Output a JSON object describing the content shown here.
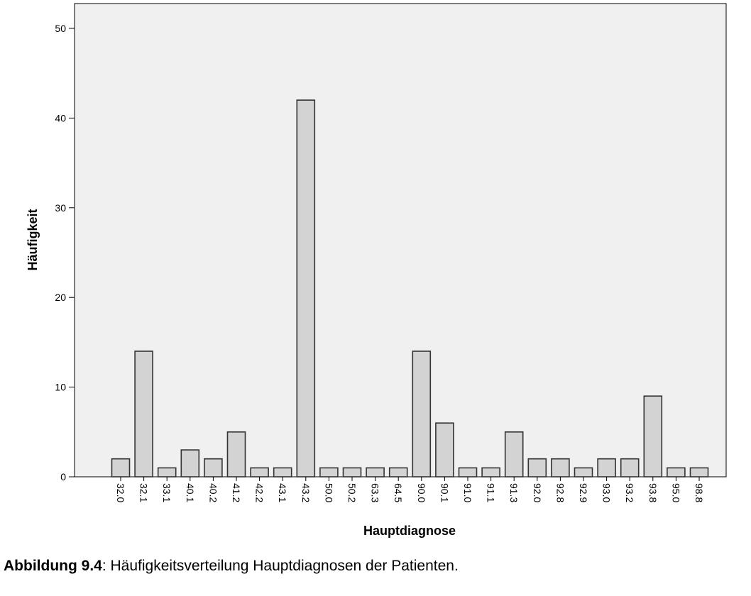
{
  "chart_data": {
    "type": "bar",
    "categories": [
      "32.0",
      "32.1",
      "33.1",
      "40.1",
      "40.2",
      "41.2",
      "42.2",
      "43.1",
      "43.2",
      "50.0",
      "50.2",
      "63.3",
      "64.5",
      "90.0",
      "90.1",
      "91.0",
      "91.1",
      "91.3",
      "92.0",
      "92.8",
      "92.9",
      "93.0",
      "93.2",
      "93.8",
      "95.0",
      "98.8"
    ],
    "values": [
      2,
      14,
      1,
      3,
      2,
      5,
      1,
      1,
      42,
      1,
      1,
      1,
      1,
      14,
      6,
      1,
      1,
      5,
      2,
      2,
      1,
      2,
      2,
      9,
      1,
      1
    ],
    "xlabel": "Hauptdiagnose",
    "ylabel": "Häufigkeit",
    "ylim": [
      0,
      50
    ],
    "yticks": [
      0,
      10,
      20,
      30,
      40,
      50
    ],
    "grid": false,
    "colors": {
      "bar_fill": "#d3d3d3",
      "bar_stroke": "#333333",
      "plot_bg": "#f0f0f0",
      "axis": "#000000"
    }
  },
  "caption": {
    "label": "Abbildung 9.4",
    "text": ": Häufigkeitsverteilung Hauptdiagnosen der Patienten."
  }
}
